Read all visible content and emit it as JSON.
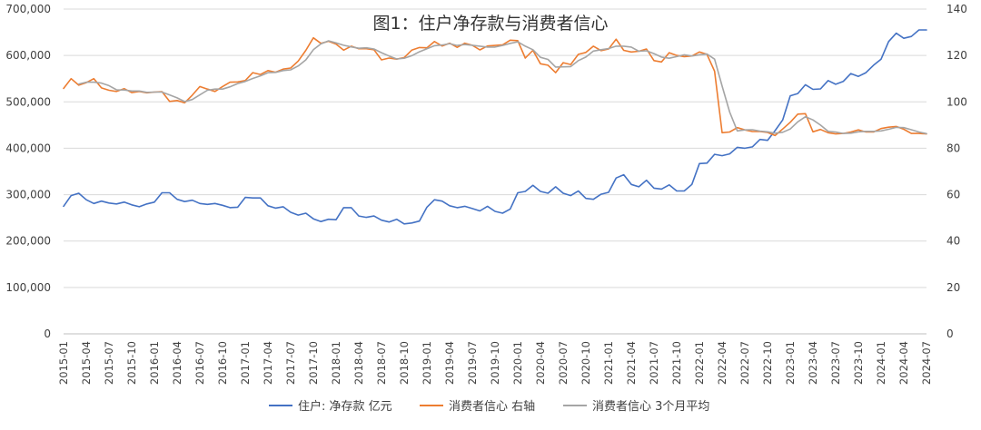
{
  "chart_data": {
    "type": "line",
    "title": "图1：住户净存款与消费者信心",
    "xlabel": "",
    "ylabel": "",
    "x": [
      "2015-01",
      "2015-02",
      "2015-03",
      "2015-04",
      "2015-05",
      "2015-06",
      "2015-07",
      "2015-08",
      "2015-09",
      "2015-10",
      "2015-11",
      "2015-12",
      "2016-01",
      "2016-02",
      "2016-03",
      "2016-04",
      "2016-05",
      "2016-06",
      "2016-07",
      "2016-08",
      "2016-09",
      "2016-10",
      "2016-11",
      "2016-12",
      "2017-01",
      "2017-02",
      "2017-03",
      "2017-04",
      "2017-05",
      "2017-06",
      "2017-07",
      "2017-08",
      "2017-09",
      "2017-10",
      "2017-11",
      "2017-12",
      "2018-01",
      "2018-02",
      "2018-03",
      "2018-04",
      "2018-05",
      "2018-06",
      "2018-07",
      "2018-08",
      "2018-09",
      "2018-10",
      "2018-11",
      "2018-12",
      "2019-01",
      "2019-02",
      "2019-03",
      "2019-04",
      "2019-05",
      "2019-06",
      "2019-07",
      "2019-08",
      "2019-09",
      "2019-10",
      "2019-11",
      "2019-12",
      "2020-01",
      "2020-02",
      "2020-03",
      "2020-04",
      "2020-05",
      "2020-06",
      "2020-07",
      "2020-08",
      "2020-09",
      "2020-10",
      "2020-11",
      "2020-12",
      "2021-01",
      "2021-02",
      "2021-03",
      "2021-04",
      "2021-05",
      "2021-06",
      "2021-07",
      "2021-08",
      "2021-09",
      "2021-10",
      "2021-11",
      "2021-12",
      "2022-01",
      "2022-02",
      "2022-03",
      "2022-04",
      "2022-05",
      "2022-06",
      "2022-07",
      "2022-08",
      "2022-09",
      "2022-10",
      "2022-11",
      "2022-12",
      "2023-01",
      "2023-02",
      "2023-03",
      "2023-04",
      "2023-05",
      "2023-06",
      "2023-07",
      "2023-08",
      "2023-09",
      "2023-10",
      "2023-11",
      "2023-12",
      "2024-01",
      "2024-02",
      "2024-03",
      "2024-04",
      "2024-05",
      "2024-06",
      "2024-07"
    ],
    "x_tick_labels": [
      "2015-01",
      "2015-04",
      "2015-07",
      "2015-10",
      "2016-01",
      "2016-04",
      "2016-07",
      "2016-10",
      "2017-01",
      "2017-04",
      "2017-07",
      "2017-10",
      "2018-01",
      "2018-04",
      "2018-07",
      "2018-10",
      "2019-01",
      "2019-04",
      "2019-07",
      "2019-10",
      "2020-01",
      "2020-04",
      "2020-07",
      "2020-10",
      "2021-01",
      "2021-04",
      "2021-07",
      "2021-10",
      "2022-01",
      "2022-04",
      "2022-07",
      "2022-10",
      "2023-01",
      "2023-04",
      "2023-07",
      "2023-10",
      "2024-01",
      "2024-04",
      "2024-07"
    ],
    "y_left": {
      "ylim": [
        0,
        700000
      ],
      "ticks": [
        0,
        100000,
        200000,
        300000,
        400000,
        500000,
        600000,
        700000
      ],
      "tick_labels": [
        "0",
        "100,000",
        "200,000",
        "300,000",
        "400,000",
        "500,000",
        "600,000",
        "700,000"
      ]
    },
    "y_right": {
      "ylim": [
        0,
        140
      ],
      "ticks": [
        0,
        20,
        40,
        60,
        80,
        100,
        120,
        140
      ],
      "tick_labels": [
        "0",
        "20",
        "40",
        "60",
        "80",
        "100",
        "120",
        "140"
      ]
    },
    "grid": true,
    "legend_position": "bottom",
    "series": [
      {
        "name": "住户: 净存款 亿元",
        "axis": "left",
        "color": "#4472C4",
        "values": [
          275000,
          298000,
          303000,
          289000,
          281000,
          286000,
          282000,
          280000,
          284000,
          278000,
          274000,
          280000,
          284000,
          304000,
          304000,
          290000,
          285000,
          288000,
          281000,
          279000,
          281000,
          277000,
          272000,
          273000,
          294000,
          293000,
          293000,
          276000,
          271000,
          274000,
          262000,
          256000,
          260000,
          248000,
          242000,
          247000,
          246000,
          272000,
          272000,
          254000,
          251000,
          254000,
          245000,
          241000,
          247000,
          237000,
          239000,
          243000,
          273000,
          289000,
          286000,
          276000,
          272000,
          275000,
          270000,
          265000,
          275000,
          264000,
          260000,
          269000,
          304000,
          307000,
          320000,
          307000,
          303000,
          317000,
          303000,
          298000,
          308000,
          292000,
          290000,
          301000,
          305000,
          336000,
          343000,
          322000,
          317000,
          331000,
          314000,
          312000,
          321000,
          308000,
          308000,
          322000,
          367000,
          368000,
          387000,
          384000,
          388000,
          402000,
          400000,
          403000,
          419000,
          417000,
          438000,
          461000,
          513000,
          518000,
          537000,
          527000,
          528000,
          546000,
          538000,
          544000,
          561000,
          555000,
          563000,
          579000,
          592000,
          630000,
          648000,
          637000,
          641000,
          655000,
          655000
        ]
      },
      {
        "name": "消费者信心 右轴",
        "axis": "right",
        "color": "#ED7D31",
        "values": [
          105.8,
          110.0,
          107.2,
          108.3,
          110.0,
          106.0,
          105.0,
          104.5,
          105.7,
          104.0,
          104.5,
          103.9,
          104.2,
          104.4,
          100.2,
          100.6,
          99.6,
          102.9,
          106.6,
          105.5,
          104.5,
          106.6,
          108.5,
          108.6,
          109.2,
          112.6,
          111.8,
          113.5,
          112.8,
          114.1,
          114.6,
          117.6,
          122.2,
          127.6,
          125.2,
          126.1,
          124.9,
          122.3,
          124.0,
          122.9,
          122.9,
          122.5,
          118.1,
          118.9,
          118.4,
          119.1,
          122.3,
          123.4,
          123.3,
          126.0,
          124.1,
          125.3,
          123.5,
          125.3,
          124.4,
          122.4,
          124.1,
          124.3,
          124.6,
          126.6,
          126.4,
          118.9,
          122.2,
          116.4,
          115.8,
          112.6,
          116.9,
          116.1,
          120.5,
          121.3,
          124.0,
          122.1,
          122.8,
          127.0,
          122.2,
          121.5,
          121.8,
          122.8,
          117.8,
          117.2,
          121.2,
          120.0,
          119.5,
          119.8,
          121.5,
          120.5,
          113.2,
          86.7,
          87.0,
          88.9,
          87.9,
          87.2,
          87.2,
          86.8,
          85.5,
          88.3,
          91.2,
          94.7,
          94.9,
          87.1,
          88.1,
          86.7,
          86.2,
          86.4,
          87.0,
          87.9,
          87.0,
          87.0,
          88.5,
          89.1,
          89.4,
          88.2,
          86.4,
          86.4,
          86.2
        ]
      },
      {
        "name": "消费者信心 3个月平均",
        "axis": "right",
        "color": "#A5A5A5",
        "values": [
          null,
          null,
          107.7,
          108.5,
          108.5,
          108.1,
          107.0,
          105.2,
          105.1,
          104.7,
          104.7,
          104.1,
          104.2,
          104.2,
          103.0,
          101.7,
          100.1,
          101.0,
          103.0,
          105.0,
          105.5,
          105.5,
          106.5,
          107.9,
          108.8,
          110.1,
          111.2,
          112.6,
          112.7,
          113.5,
          113.8,
          115.5,
          118.1,
          122.5,
          125.0,
          126.3,
          125.4,
          124.4,
          123.7,
          123.1,
          123.3,
          122.8,
          121.2,
          119.8,
          118.5,
          118.8,
          119.9,
          121.6,
          122.9,
          124.2,
          124.5,
          125.1,
          124.3,
          124.7,
          124.4,
          124.0,
          123.6,
          123.6,
          124.3,
          125.2,
          125.9,
          124.0,
          122.5,
          119.2,
          118.3,
          115.0,
          115.1,
          115.2,
          117.8,
          119.3,
          121.9,
          122.5,
          123.0,
          124.0,
          124.0,
          123.6,
          121.8,
          122.0,
          120.8,
          119.3,
          118.8,
          119.5,
          120.3,
          119.8,
          120.3,
          120.6,
          118.4,
          106.8,
          95.6,
          87.5,
          87.9,
          88.0,
          87.4,
          87.1,
          86.5,
          86.9,
          88.3,
          91.4,
          93.6,
          92.2,
          90.0,
          87.3,
          87.0,
          86.4,
          86.5,
          87.1,
          87.3,
          87.3,
          87.5,
          88.2,
          89.0,
          88.9,
          88.0,
          87.0,
          86.3
        ]
      }
    ]
  }
}
